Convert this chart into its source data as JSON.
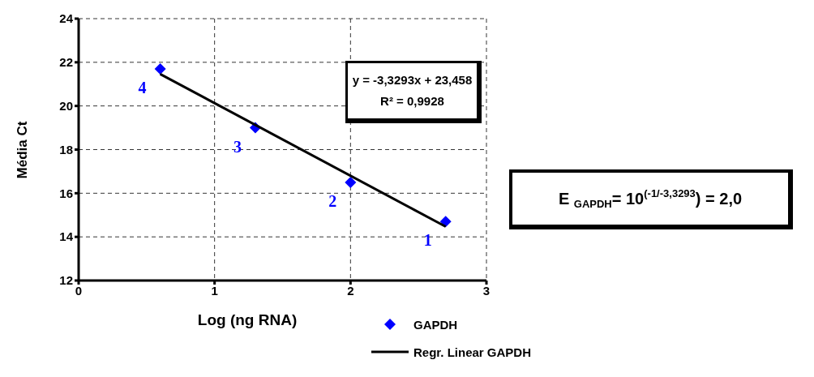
{
  "chart_data": {
    "type": "scatter",
    "xlabel": "Log (ng RNA)",
    "ylabel": "Média Ct",
    "x": [
      0.6,
      1.3,
      2.0,
      2.7
    ],
    "series": [
      {
        "name": "GAPDH",
        "color": "#0000ff",
        "values": [
          21.7,
          19.0,
          16.5,
          14.7
        ],
        "marker": "diamond"
      },
      {
        "name": "Regr. Linear GAPDH",
        "type": "line",
        "color": "#000000",
        "x": [
          0.6,
          2.7
        ],
        "values": [
          21.46,
          14.47
        ],
        "line_style": "solid",
        "marker": "none"
      }
    ],
    "xlim": [
      0,
      3
    ],
    "xticks": [
      0,
      1,
      2,
      3
    ],
    "ylim": [
      12,
      24
    ],
    "yticks": [
      12,
      14,
      16,
      18,
      20,
      22,
      24
    ],
    "grid": true,
    "legend": "bottom",
    "annotations": [
      {
        "text": "4",
        "x": 0.6,
        "y": 21.7
      },
      {
        "text": "3",
        "x": 1.3,
        "y": 19.0
      },
      {
        "text": "2",
        "x": 2.0,
        "y": 16.5
      },
      {
        "text": "1",
        "x": 2.7,
        "y": 14.7
      },
      "y = -3,3293x + 23,458",
      "R² = 0,9928",
      "E $_{GAPDH}$= 10$^{(-1/-3,3293}$) = 2,0"
    ]
  }
}
